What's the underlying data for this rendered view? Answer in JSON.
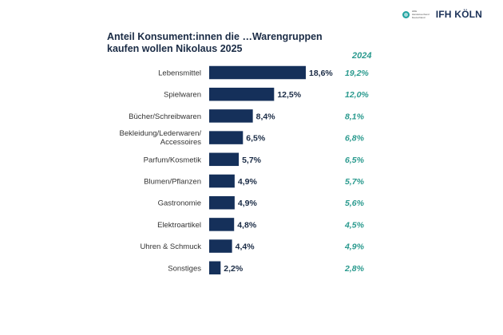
{
  "brand": {
    "partner_logo_text": "HDE Handelsverband Deutschland",
    "logo_text": "IFH KÖLN",
    "accent_color": "#15305a",
    "comparison_color": "#2a9a8e"
  },
  "chart_data": {
    "type": "bar",
    "orientation": "horizontal",
    "title": "Anteil Konsument:innen die …Warengruppen\nkaufen wollen Nikolaus 2025",
    "categories": [
      "Lebensmittel",
      "Spielwaren",
      "Bücher/Schreibwaren",
      "Bekleidung/Lederwaren/\nAccessoires",
      "Parfum/Kosmetik",
      "Blumen/Pflanzen",
      "Gastronomie",
      "Elektroartikel",
      "Uhren & Schmuck",
      "Sonstiges"
    ],
    "values": [
      18.6,
      12.5,
      8.4,
      6.5,
      5.7,
      4.9,
      4.9,
      4.8,
      4.4,
      2.2
    ],
    "value_labels": [
      "18,6%",
      "12,5%",
      "8,4%",
      "6,5%",
      "5,7%",
      "4,9%",
      "4,9%",
      "4,8%",
      "4,4%",
      "2,2%"
    ],
    "comparison": {
      "name": "2024",
      "values": [
        19.2,
        12.0,
        8.1,
        6.8,
        6.5,
        5.7,
        5.6,
        4.5,
        4.9,
        2.8
      ],
      "labels": [
        "19,2%",
        "12,0%",
        "8,1%",
        "6,8%",
        "6,5%",
        "5,7%",
        "5,6%",
        "4,5%",
        "4,9%",
        "2,8%"
      ]
    },
    "xlim": [
      0,
      20
    ],
    "grid": false,
    "legend": "none"
  }
}
